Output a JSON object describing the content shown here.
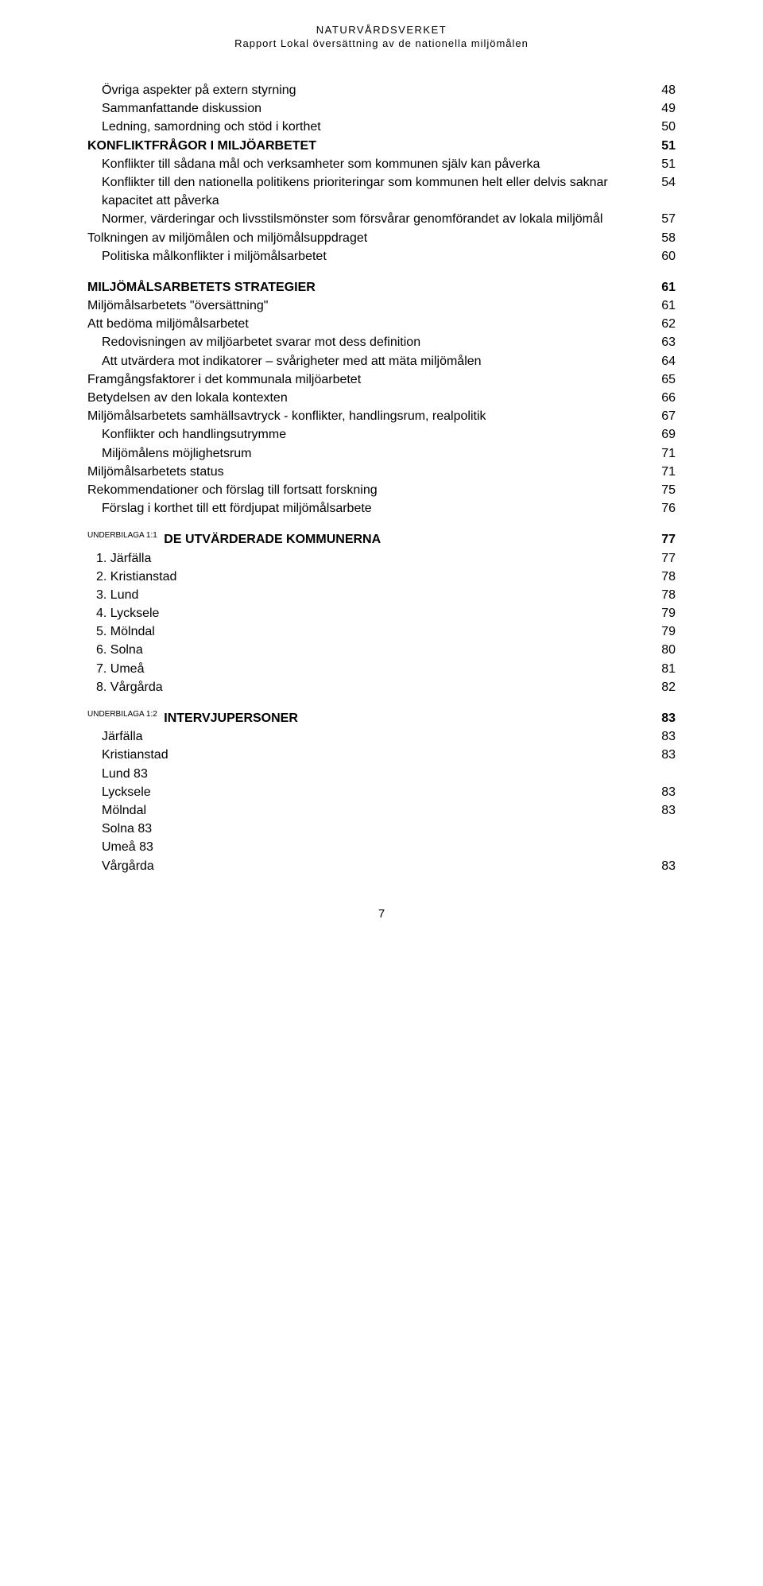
{
  "header": {
    "line1": "NATURVÅRDSVERKET",
    "line2": "Rapport Lokal översättning av de nationella miljömålen"
  },
  "toc_block1": [
    {
      "label": "Övriga aspekter på extern styrning",
      "page": "48",
      "indent": 1
    },
    {
      "label": "Sammanfattande diskussion",
      "page": "49",
      "indent": 1
    },
    {
      "label": "Ledning, samordning och stöd i korthet",
      "page": "50",
      "indent": 1
    }
  ],
  "toc_block2_title": {
    "label": "KONFLIKTFRÅGOR I MILJÖARBETET",
    "page": "51"
  },
  "toc_block2": [
    {
      "label": "Konflikter till sådana mål och verksamheter  som kommunen själv kan påverka",
      "page": "51",
      "indent": 1
    },
    {
      "label": "Konflikter till den nationella politikens prioriteringar  som kommunen helt eller delvis saknar kapacitet att påverka",
      "page": "54",
      "indent": 1
    },
    {
      "label": "Normer, värderingar och livsstilsmönster som  försvårar genomförandet av lokala miljömål",
      "page": "57",
      "indent": 1
    },
    {
      "label": "Tolkningen av miljömålen och miljömålsuppdraget",
      "page": "58",
      "indent": 0
    },
    {
      "label": "Politiska målkonflikter i miljömålsarbetet",
      "page": "60",
      "indent": 1
    }
  ],
  "toc_block3_title": {
    "label": "MILJÖMÅLSARBETETS STRATEGIER",
    "page": "61"
  },
  "toc_block3": [
    {
      "label": "Miljömålsarbetets \"översättning\"",
      "page": "61",
      "indent": 0
    },
    {
      "label": "Att bedöma miljömålsarbetet",
      "page": "62",
      "indent": 0
    },
    {
      "label": "Redovisningen av miljöarbetet svarar mot dess definition",
      "page": "63",
      "indent": 1
    },
    {
      "label": "Att utvärdera mot indikatorer – svårigheter med att mäta miljömålen",
      "page": "64",
      "indent": 1
    },
    {
      "label": "Framgångsfaktorer i det kommunala miljöarbetet",
      "page": "65",
      "indent": 0
    },
    {
      "label": "Betydelsen av den lokala kontexten",
      "page": "66",
      "indent": 0
    },
    {
      "label": "Miljömålsarbetets samhällsavtryck  - konflikter, handlingsrum, realpolitik",
      "page": "67",
      "indent": 0
    },
    {
      "label": "Konflikter och handlingsutrymme",
      "page": "69",
      "indent": 1
    },
    {
      "label": "Miljömålens möjlighetsrum",
      "page": "71",
      "indent": 1
    },
    {
      "label": "Miljömålsarbetets status",
      "page": "71",
      "indent": 0
    },
    {
      "label": "Rekommendationer och förslag till fortsatt forskning",
      "page": "75",
      "indent": 0
    },
    {
      "label": "Förslag i korthet till ett fördjupat miljömålsarbete",
      "page": "76",
      "indent": 1
    }
  ],
  "underbilaga1": {
    "prefix": "UNDERBILAGA 1:1",
    "title": "DE UTVÄRDERADE KOMMUNERNA",
    "page": "77",
    "items": [
      {
        "label": "1. Järfälla",
        "page": "77"
      },
      {
        "label": "2. Kristianstad",
        "page": "78"
      },
      {
        "label": "3. Lund",
        "page": "78"
      },
      {
        "label": "4. Lycksele",
        "page": "79"
      },
      {
        "label": "5. Mölndal",
        "page": "79"
      },
      {
        "label": "6. Solna",
        "page": "80"
      },
      {
        "label": "7. Umeå",
        "page": "81"
      },
      {
        "label": "8. Vårgårda",
        "page": "82"
      }
    ]
  },
  "underbilaga2": {
    "prefix": "UNDERBILAGA 1:2",
    "title": "INTERVJUPERSONER",
    "page": "83",
    "items": [
      {
        "label": "Järfälla",
        "page": "83",
        "inline": false
      },
      {
        "label": "Kristianstad",
        "page": "83",
        "inline": false
      },
      {
        "label": "Lund   83",
        "page": "",
        "inline": true
      },
      {
        "label": "Lycksele",
        "page": "83",
        "inline": false
      },
      {
        "label": "Mölndal",
        "page": "83",
        "inline": false
      },
      {
        "label": "Solna  83",
        "page": "",
        "inline": true
      },
      {
        "label": "Umeå 83",
        "page": "",
        "inline": true
      },
      {
        "label": "Vårgårda",
        "page": "83",
        "inline": false
      }
    ]
  },
  "pagenum": "7"
}
